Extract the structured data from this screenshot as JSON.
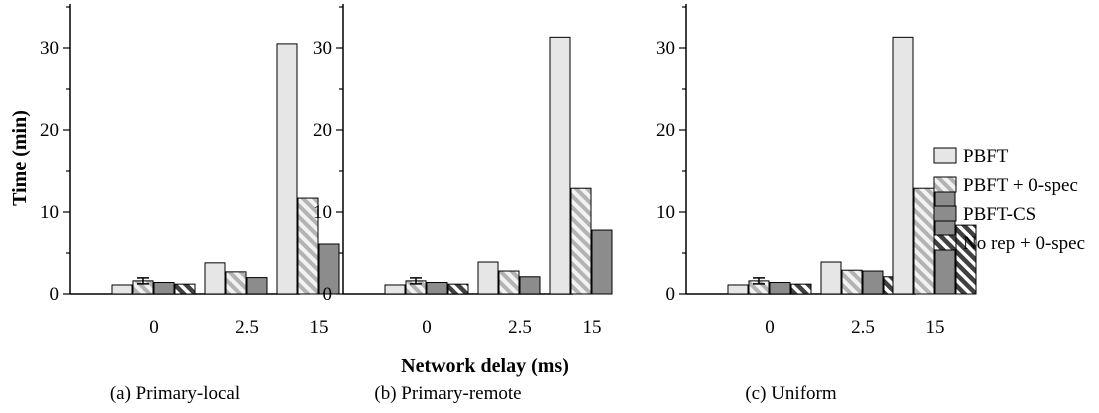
{
  "figure": {
    "ylabel": "Time (min)",
    "xlabel": "Network delay (ms)"
  },
  "chart_data": [
    {
      "type": "bar",
      "caption": "(a) Primary-local",
      "categories": [
        "0",
        "2.5",
        "15"
      ],
      "ylim": [
        0,
        35
      ],
      "yticks": [
        0,
        10,
        20,
        30
      ],
      "ylabel": "Time (min)",
      "xlabel": "",
      "series": [
        {
          "name": "PBFT",
          "values": [
            1.1,
            3.8,
            30.5
          ]
        },
        {
          "name": "PBFT + 0-spec",
          "values": [
            1.6,
            2.7,
            11.7
          ]
        },
        {
          "name": "PBFT-CS",
          "values": [
            1.4,
            2.0,
            6.1
          ]
        },
        {
          "name": "No rep + 0-spec",
          "values": [
            1.2,
            0,
            0
          ]
        }
      ]
    },
    {
      "type": "bar",
      "caption": "(b) Primary-remote",
      "categories": [
        "0",
        "2.5",
        "15"
      ],
      "ylim": [
        0,
        35
      ],
      "yticks": [
        0,
        10,
        20,
        30
      ],
      "ylabel": "",
      "xlabel": "Network delay (ms)",
      "series": [
        {
          "name": "PBFT",
          "values": [
            1.1,
            3.9,
            31.3
          ]
        },
        {
          "name": "PBFT + 0-spec",
          "values": [
            1.6,
            2.8,
            12.9
          ]
        },
        {
          "name": "PBFT-CS",
          "values": [
            1.4,
            2.1,
            7.8
          ]
        },
        {
          "name": "No rep + 0-spec",
          "values": [
            1.2,
            0,
            0
          ]
        }
      ]
    },
    {
      "type": "bar",
      "caption": "(c) Uniform",
      "categories": [
        "0",
        "2.5",
        "15"
      ],
      "ylim": [
        0,
        35
      ],
      "yticks": [
        0,
        10,
        20,
        30
      ],
      "ylabel": "",
      "xlabel": "",
      "series": [
        {
          "name": "PBFT",
          "values": [
            1.1,
            3.9,
            31.3
          ]
        },
        {
          "name": "PBFT + 0-spec",
          "values": [
            1.6,
            2.9,
            12.9
          ]
        },
        {
          "name": "PBFT-CS",
          "values": [
            1.4,
            2.8,
            14.0
          ]
        },
        {
          "name": "No rep + 0-spec",
          "values": [
            1.2,
            2.1,
            8.4
          ]
        }
      ]
    }
  ],
  "legend": {
    "placement": "right",
    "items": [
      {
        "label": "PBFT",
        "fill": "#e6e6e6",
        "hatch": false,
        "hatch_color": ""
      },
      {
        "label": "PBFT + 0-spec",
        "fill": "#f2f2f2",
        "hatch": true,
        "hatch_color": "#b3b3b3"
      },
      {
        "label": "PBFT-CS",
        "fill": "#8c8c8c",
        "hatch": false,
        "hatch_color": ""
      },
      {
        "label": "No rep + 0-spec",
        "fill": "#ffffff",
        "hatch": true,
        "hatch_color": "#404040"
      }
    ]
  }
}
